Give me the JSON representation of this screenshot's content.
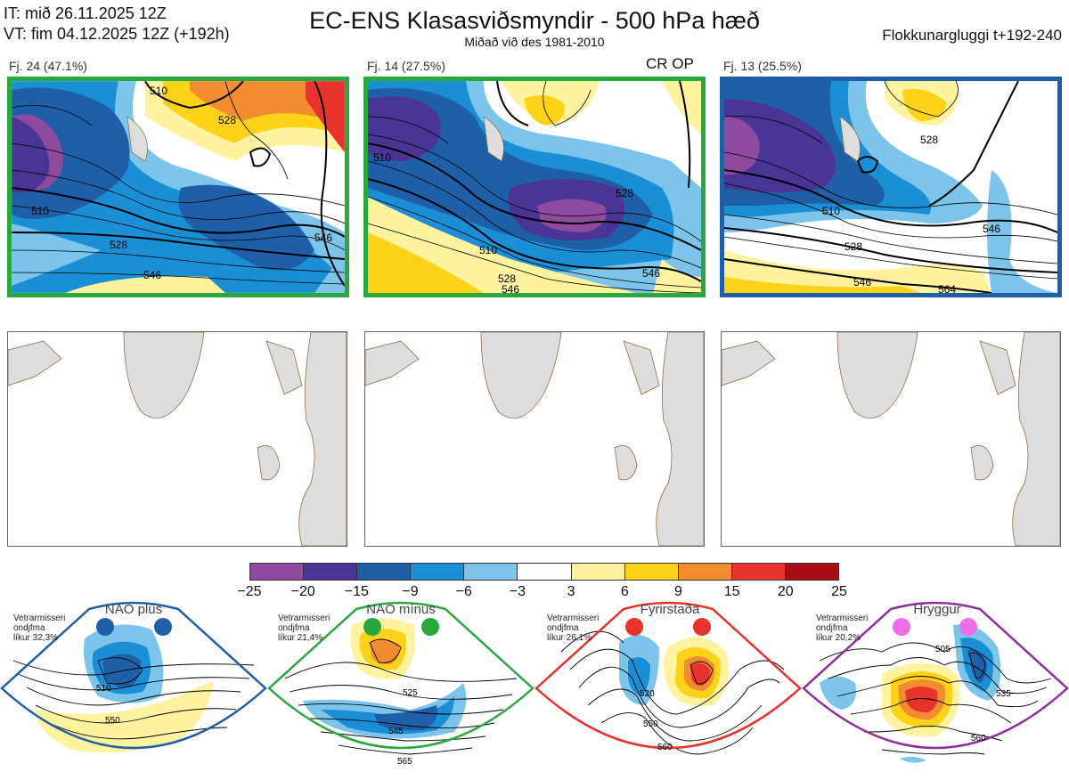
{
  "header": {
    "it": "IT: mið 26.11.2025 12Z",
    "vt": "VT: fim 04.12.2025 12Z  (+192h)",
    "title": "EC-ENS Klasasviðsmyndir - 500 hPa hæð",
    "subtitle": "Miðað við des 1981-2010",
    "right": "Flokkunargluggi t+192-240"
  },
  "panels": [
    {
      "label": "Fj. 24 (47.1%)",
      "contours": [
        "510",
        "528",
        "546",
        "528",
        "510",
        "546"
      ]
    },
    {
      "label": "Fj. 14 (27.5%)",
      "contours": [
        "510",
        "528",
        "546",
        "510",
        "528",
        "546"
      ],
      "tag": "CR OP"
    },
    {
      "label": "Fj. 13 (25.5%)",
      "contours": [
        "510",
        "528",
        "546",
        "528",
        "546",
        "564"
      ]
    }
  ],
  "colorbar": {
    "ticks": [
      "−25",
      "−20",
      "−15",
      "−9",
      "−6",
      "−3",
      "3",
      "6",
      "9",
      "15",
      "20",
      "25"
    ],
    "colors": [
      "#8e4a9e",
      "#4a3596",
      "#1f5fa8",
      "#1a8fd6",
      "#7cc4ea",
      "#ffffff",
      "#fff3a0",
      "#ffd21a",
      "#f28c30",
      "#e8322d",
      "#a80f14"
    ]
  },
  "regimes": [
    {
      "name": "NAO plús",
      "prob": [
        "Vetrarmisseri",
        "ondjfma",
        "líkur 32,3%"
      ],
      "color": "#1f5fa8",
      "labels": [
        "510",
        "550"
      ]
    },
    {
      "name": "NAO mínus",
      "prob": [
        "Vetrarmisseri",
        "ondjfma",
        "líkur 21,4%"
      ],
      "color": "#2aa840",
      "labels": [
        "525",
        "545",
        "565"
      ]
    },
    {
      "name": "Fyrirstaða",
      "prob": [
        "Vetrarmisseri",
        "ondjfma",
        "líkur 26,1%"
      ],
      "color": "#e8322d",
      "labels": [
        "520",
        "550",
        "560"
      ]
    },
    {
      "name": "Hryggur",
      "prob": [
        "Vetrarmisseri",
        "ondjfma",
        "líkur 20,2%"
      ],
      "color": "#8e2e9a",
      "dot": "#ee6ee8",
      "labels": [
        "505",
        "535",
        "560"
      ]
    }
  ]
}
